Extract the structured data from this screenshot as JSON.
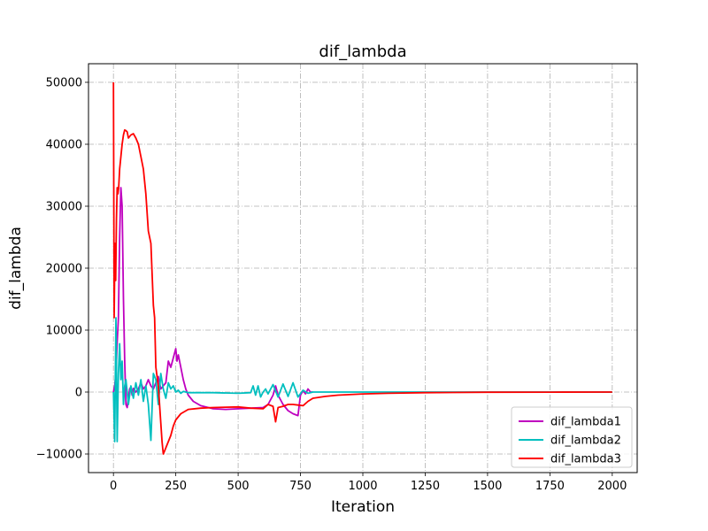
{
  "chart_data": {
    "type": "line",
    "title": "dif_lambda",
    "xlabel": "Iteration",
    "ylabel": "dif_lambda",
    "xlim": [
      -100,
      2100
    ],
    "ylim": [
      -13000,
      53000
    ],
    "xticks": [
      0,
      250,
      500,
      750,
      1000,
      1250,
      1500,
      1750,
      2000
    ],
    "yticks": [
      -10000,
      0,
      10000,
      20000,
      30000,
      40000,
      50000
    ],
    "grid": true,
    "legend_position": "lower-right",
    "series": [
      {
        "name": "dif_lambda1",
        "color": "#bf00bf",
        "x": [
          0,
          5,
          10,
          15,
          20,
          25,
          30,
          35,
          40,
          45,
          50,
          55,
          60,
          65,
          70,
          75,
          80,
          90,
          100,
          110,
          120,
          130,
          140,
          150,
          160,
          170,
          180,
          190,
          200,
          210,
          220,
          230,
          240,
          250,
          255,
          260,
          270,
          280,
          290,
          300,
          320,
          350,
          400,
          450,
          500,
          550,
          600,
          620,
          640,
          650,
          660,
          680,
          700,
          720,
          740,
          750,
          760,
          770,
          780,
          790,
          800
        ],
        "y": [
          0,
          1000,
          3000,
          8000,
          12000,
          25000,
          33000,
          30000,
          15000,
          5000,
          -2000,
          -2500,
          -1000,
          500,
          800,
          -500,
          600,
          0,
          500,
          1500,
          500,
          1000,
          2000,
          1000,
          500,
          1500,
          2500,
          500,
          1000,
          1500,
          5000,
          4000,
          5500,
          7000,
          5000,
          6000,
          4000,
          2000,
          500,
          -500,
          -1500,
          -2200,
          -2700,
          -2800,
          -2700,
          -2600,
          -2500,
          -2000,
          -500,
          1000,
          -500,
          -2000,
          -3000,
          -3500,
          -3800,
          -500,
          200,
          -300,
          500,
          0,
          0
        ]
      },
      {
        "name": "dif_lambda2",
        "color": "#00bfbf",
        "x": [
          0,
          5,
          10,
          15,
          20,
          25,
          30,
          35,
          40,
          45,
          50,
          60,
          70,
          80,
          90,
          100,
          110,
          120,
          130,
          140,
          150,
          160,
          170,
          180,
          190,
          200,
          210,
          220,
          230,
          240,
          250,
          260,
          270,
          280,
          300,
          400,
          500,
          550,
          560,
          570,
          580,
          590,
          600,
          610,
          620,
          640,
          660,
          680,
          700,
          720,
          740,
          760,
          780,
          800,
          850,
          900,
          1000,
          1250,
          1500,
          1750,
          2000
        ],
        "y": [
          0,
          -8000,
          12000,
          -8000,
          3000,
          7800,
          2000,
          5000,
          -2000,
          1000,
          2000,
          -2000,
          1000,
          -1000,
          1500,
          -500,
          2000,
          -1500,
          1000,
          -2000,
          -7800,
          3000,
          2000,
          -2000,
          3000,
          500,
          -1000,
          1500,
          500,
          1000,
          0,
          300,
          -200,
          100,
          -100,
          -100,
          -200,
          -100,
          1000,
          -500,
          1000,
          -800,
          0,
          500,
          -300,
          1200,
          -800,
          1300,
          -700,
          1500,
          -800,
          300,
          -200,
          0,
          0,
          0,
          0,
          0,
          0,
          0,
          0
        ]
      },
      {
        "name": "dif_lambda3",
        "color": "#ff0000",
        "x": [
          0,
          3,
          6,
          9,
          12,
          15,
          18,
          21,
          25,
          30,
          35,
          40,
          45,
          50,
          55,
          60,
          70,
          80,
          90,
          100,
          110,
          120,
          130,
          140,
          150,
          160,
          165,
          170,
          180,
          190,
          195,
          200,
          205,
          210,
          220,
          230,
          240,
          250,
          270,
          300,
          350,
          400,
          450,
          500,
          550,
          600,
          620,
          640,
          650,
          660,
          680,
          700,
          720,
          740,
          760,
          780,
          800,
          850,
          900,
          1000,
          1100,
          1250,
          1500,
          1750,
          2000
        ],
        "y": [
          50000,
          12000,
          24000,
          18000,
          28000,
          33000,
          32000,
          33000,
          36000,
          38000,
          40000,
          41500,
          42300,
          42200,
          42000,
          41000,
          41500,
          41700,
          41000,
          40000,
          38000,
          36000,
          32000,
          26000,
          24000,
          14000,
          12000,
          4000,
          1000,
          -5000,
          -8000,
          -10000,
          -9500,
          -9000,
          -8000,
          -7000,
          -5500,
          -4500,
          -3500,
          -2800,
          -2600,
          -2500,
          -2450,
          -2400,
          -2600,
          -2700,
          -2000,
          -2300,
          -4800,
          -2500,
          -2300,
          -2000,
          -2000,
          -2100,
          -2200,
          -1500,
          -1000,
          -700,
          -500,
          -300,
          -200,
          -100,
          -30,
          -10,
          0
        ]
      }
    ]
  }
}
